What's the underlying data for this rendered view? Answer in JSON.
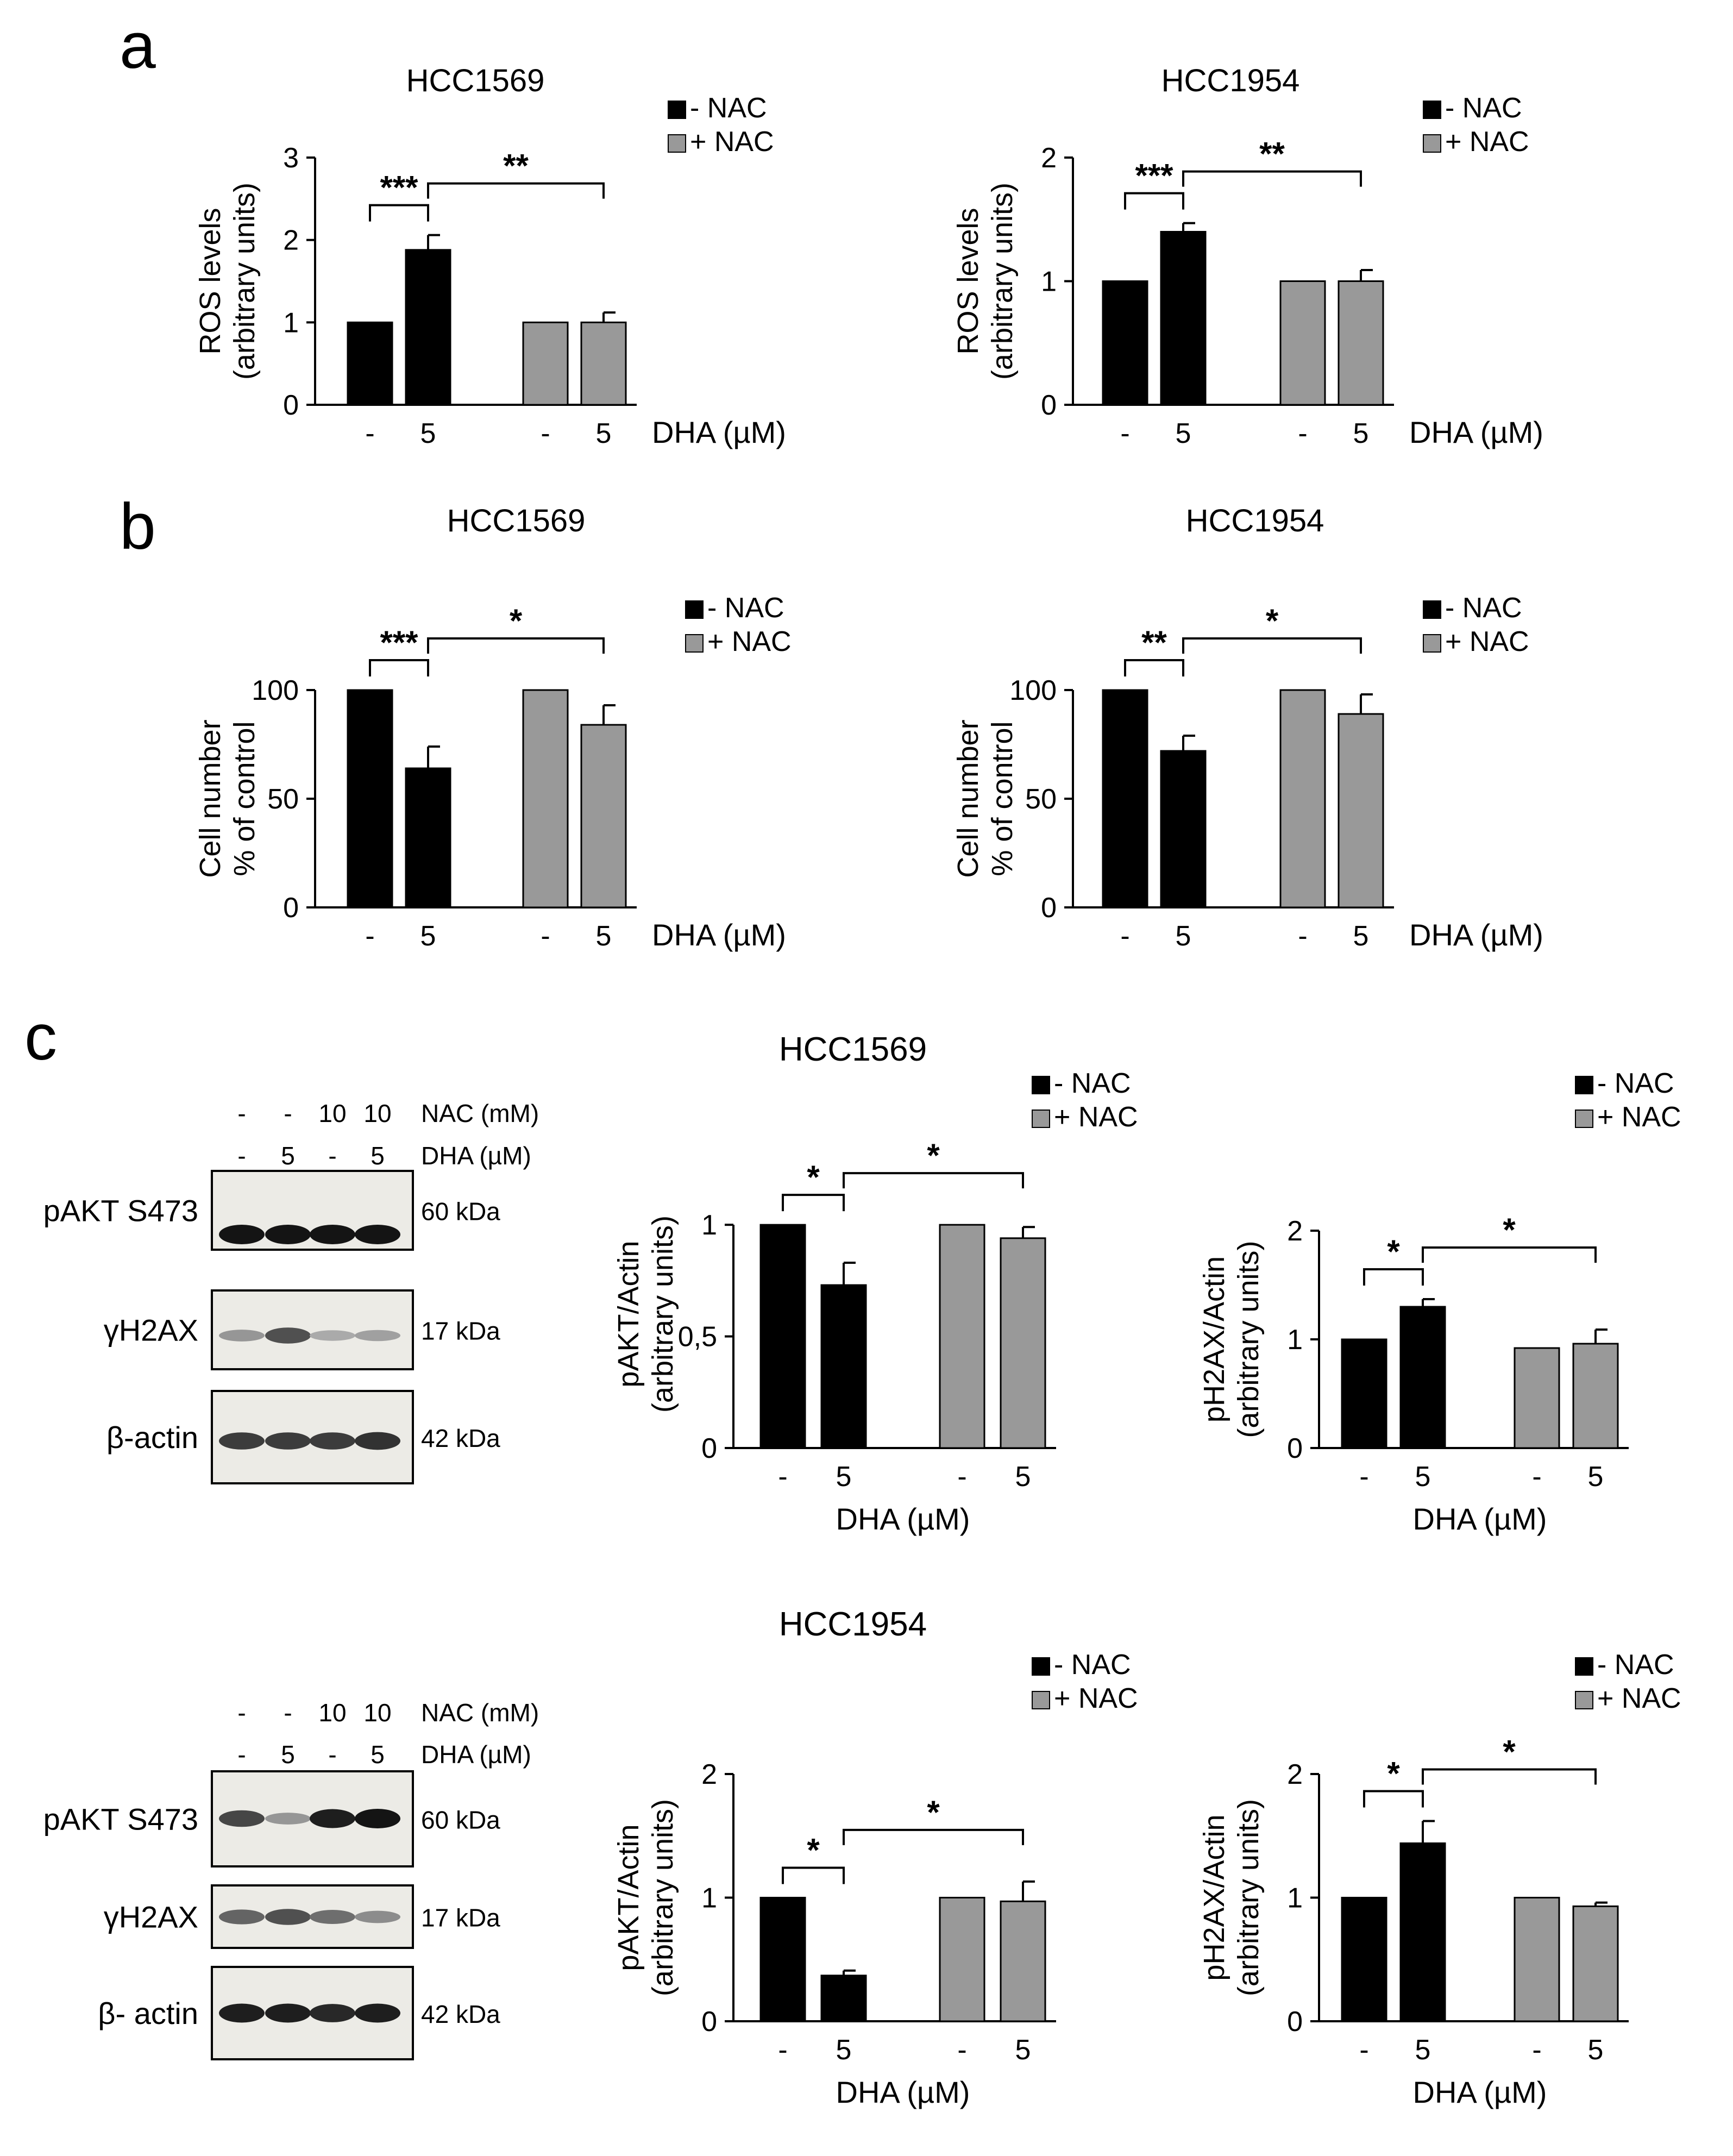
{
  "panel_letters": [
    "a",
    "b",
    "c"
  ],
  "section_titles": {
    "c_top": "HCC1569",
    "c_bottom": "HCC1954"
  },
  "colors": {
    "minus_nac": "#000000",
    "plus_nac": "#999999",
    "axis": "#000000"
  },
  "blots": [
    {
      "id": "blot-top",
      "nac_row": {
        "values": [
          "-",
          "-",
          "10",
          "10"
        ],
        "label": "NAC (mM)"
      },
      "dha_row": {
        "values": [
          "-",
          "5",
          "-",
          "5"
        ],
        "label": "DHA (µM)"
      },
      "bands": [
        {
          "name": "pAKT S473",
          "kda": "60 kDa"
        },
        {
          "name": "γH2AX",
          "kda": "17 kDa"
        },
        {
          "name": "β-actin",
          "kda": "42 kDa"
        }
      ]
    },
    {
      "id": "blot-bottom",
      "nac_row": {
        "values": [
          "-",
          "-",
          "10",
          "10"
        ],
        "label": "NAC (mM)"
      },
      "dha_row": {
        "values": [
          "-",
          "5",
          "-",
          "5"
        ],
        "label": "DHA (µM)"
      },
      "bands": [
        {
          "name": "pAKT S473",
          "kda": "60 kDa"
        },
        {
          "name": "γH2AX",
          "kda": "17 kDa"
        },
        {
          "name": "β- actin",
          "kda": "42 kDa"
        }
      ]
    }
  ],
  "chart_data": [
    {
      "id": "a-hcc1569",
      "type": "bar",
      "title": "HCC1569",
      "ylabel": [
        "ROS levels",
        "(arbitrary units)"
      ],
      "xlabel": "DHA (µM)",
      "xlabel_pos": "right",
      "legend": [
        "- NAC",
        "+ NAC"
      ],
      "categories": [
        "-",
        "5",
        "-",
        "5"
      ],
      "values": [
        1.0,
        1.88,
        1.0,
        1.0
      ],
      "errors": [
        0,
        0.18,
        0,
        0.12
      ],
      "groups": [
        "minus",
        "minus",
        "plus",
        "plus"
      ],
      "ylim": [
        0,
        3
      ],
      "yticks": [
        0,
        1,
        2,
        3
      ],
      "ytick_labels": [
        "0",
        "1",
        "2",
        "3"
      ],
      "significance": [
        {
          "from": 0,
          "to": 1,
          "label": "***"
        },
        {
          "from": 1,
          "to": 3,
          "label": "**"
        }
      ]
    },
    {
      "id": "a-hcc1954",
      "type": "bar",
      "title": "HCC1954",
      "ylabel": [
        "ROS levels",
        "(arbitrary units)"
      ],
      "xlabel": "DHA (µM)",
      "xlabel_pos": "right",
      "legend": [
        "- NAC",
        "+ NAC"
      ],
      "categories": [
        "-",
        "5",
        "-",
        "5"
      ],
      "values": [
        1.0,
        1.4,
        1.0,
        1.0
      ],
      "errors": [
        0,
        0.07,
        0,
        0.09
      ],
      "groups": [
        "minus",
        "minus",
        "plus",
        "plus"
      ],
      "ylim": [
        0,
        2
      ],
      "yticks": [
        0,
        1,
        2
      ],
      "ytick_labels": [
        "0",
        "1",
        "2"
      ],
      "significance": [
        {
          "from": 0,
          "to": 1,
          "label": "***"
        },
        {
          "from": 1,
          "to": 3,
          "label": "**"
        }
      ]
    },
    {
      "id": "b-hcc1569",
      "type": "bar",
      "title": "HCC1569",
      "ylabel": [
        "Cell number",
        "% of control"
      ],
      "xlabel": "DHA (µM)",
      "xlabel_pos": "right",
      "legend": [
        "- NAC",
        "+ NAC"
      ],
      "categories": [
        "-",
        "5",
        "-",
        "5"
      ],
      "values": [
        100,
        64,
        100,
        84
      ],
      "errors": [
        0,
        10,
        0,
        9
      ],
      "groups": [
        "minus",
        "minus",
        "plus",
        "plus"
      ],
      "ylim": [
        0,
        100
      ],
      "yticks": [
        0,
        50,
        100
      ],
      "ytick_labels": [
        "0",
        "50",
        "100"
      ],
      "significance": [
        {
          "from": 0,
          "to": 1,
          "label": "***"
        },
        {
          "from": 1,
          "to": 3,
          "label": "*"
        }
      ]
    },
    {
      "id": "b-hcc1954",
      "type": "bar",
      "title": "HCC1954",
      "ylabel": [
        "Cell number",
        "% of control"
      ],
      "xlabel": "DHA (µM)",
      "xlabel_pos": "right",
      "legend": [
        "- NAC",
        "+ NAC"
      ],
      "categories": [
        "-",
        "5",
        "-",
        "5"
      ],
      "values": [
        100,
        72,
        100,
        89
      ],
      "errors": [
        0,
        7,
        0,
        9
      ],
      "groups": [
        "minus",
        "minus",
        "plus",
        "plus"
      ],
      "ylim": [
        0,
        100
      ],
      "yticks": [
        0,
        50,
        100
      ],
      "ytick_labels": [
        "0",
        "50",
        "100"
      ],
      "significance": [
        {
          "from": 0,
          "to": 1,
          "label": "**"
        },
        {
          "from": 1,
          "to": 3,
          "label": "*"
        }
      ]
    },
    {
      "id": "c-hcc1569-pakt",
      "type": "bar",
      "title": "",
      "ylabel": [
        "pAKT/Actin",
        "(arbitrary units)"
      ],
      "xlabel": "DHA (µM)",
      "xlabel_pos": "below",
      "legend": [
        "- NAC",
        "+ NAC"
      ],
      "categories": [
        "-",
        "5",
        "-",
        "5"
      ],
      "values": [
        1.0,
        0.73,
        1.0,
        0.94
      ],
      "errors": [
        0,
        0.1,
        0,
        0.05
      ],
      "groups": [
        "minus",
        "minus",
        "plus",
        "plus"
      ],
      "ylim": [
        0,
        1.2
      ],
      "yticks": [
        0,
        0.5,
        1
      ],
      "ytick_labels": [
        "0",
        "0,5",
        "1"
      ],
      "significance": [
        {
          "from": 0,
          "to": 1,
          "label": "*"
        },
        {
          "from": 1,
          "to": 3,
          "label": "*"
        }
      ]
    },
    {
      "id": "c-hcc1569-ph2ax",
      "type": "bar",
      "title": "",
      "ylabel": [
        "pH2AX/Actin",
        "(arbitrary units)"
      ],
      "xlabel": "DHA (µM)",
      "xlabel_pos": "below",
      "legend": [
        "- NAC",
        "+ NAC"
      ],
      "categories": [
        "-",
        "5",
        "-",
        "5"
      ],
      "values": [
        1.0,
        1.3,
        0.92,
        0.96
      ],
      "errors": [
        0,
        0.07,
        0,
        0.13
      ],
      "groups": [
        "minus",
        "minus",
        "plus",
        "plus"
      ],
      "ylim": [
        0,
        2
      ],
      "yticks": [
        0,
        1,
        2
      ],
      "ytick_labels": [
        "0",
        "1",
        "2"
      ],
      "significance": [
        {
          "from": 0,
          "to": 1,
          "label": "*"
        },
        {
          "from": 1,
          "to": 3,
          "label": "*"
        }
      ]
    },
    {
      "id": "c-hcc1954-pakt",
      "type": "bar",
      "title": "",
      "ylabel": [
        "pAKT/Actin",
        "(arbitrary units)"
      ],
      "xlabel": "DHA (µM)",
      "xlabel_pos": "below",
      "legend": [
        "- NAC",
        "+ NAC"
      ],
      "categories": [
        "-",
        "5",
        "-",
        "5"
      ],
      "values": [
        1.0,
        0.37,
        1.0,
        0.97
      ],
      "errors": [
        0,
        0.04,
        0,
        0.16
      ],
      "groups": [
        "minus",
        "minus",
        "plus",
        "plus"
      ],
      "ylim": [
        0,
        2
      ],
      "yticks": [
        0,
        1,
        2
      ],
      "ytick_labels": [
        "0",
        "1",
        "2"
      ],
      "significance": [
        {
          "from": 0,
          "to": 1,
          "label": "*"
        },
        {
          "from": 1,
          "to": 3,
          "label": "*"
        }
      ]
    },
    {
      "id": "c-hcc1954-ph2ax",
      "type": "bar",
      "title": "",
      "ylabel": [
        "pH2AX/Actin",
        "(arbitrary units)"
      ],
      "xlabel": "DHA (µM)",
      "xlabel_pos": "below",
      "legend": [
        "- NAC",
        "+ NAC"
      ],
      "categories": [
        "-",
        "5",
        "-",
        "5"
      ],
      "values": [
        1.0,
        1.44,
        1.0,
        0.93
      ],
      "errors": [
        0,
        0.18,
        0,
        0.03
      ],
      "groups": [
        "minus",
        "minus",
        "plus",
        "plus"
      ],
      "ylim": [
        0,
        2
      ],
      "yticks": [
        0,
        1,
        2
      ],
      "ytick_labels": [
        "0",
        "1",
        "2"
      ],
      "significance": [
        {
          "from": 0,
          "to": 1,
          "label": "*"
        },
        {
          "from": 1,
          "to": 3,
          "label": "*"
        }
      ]
    }
  ]
}
